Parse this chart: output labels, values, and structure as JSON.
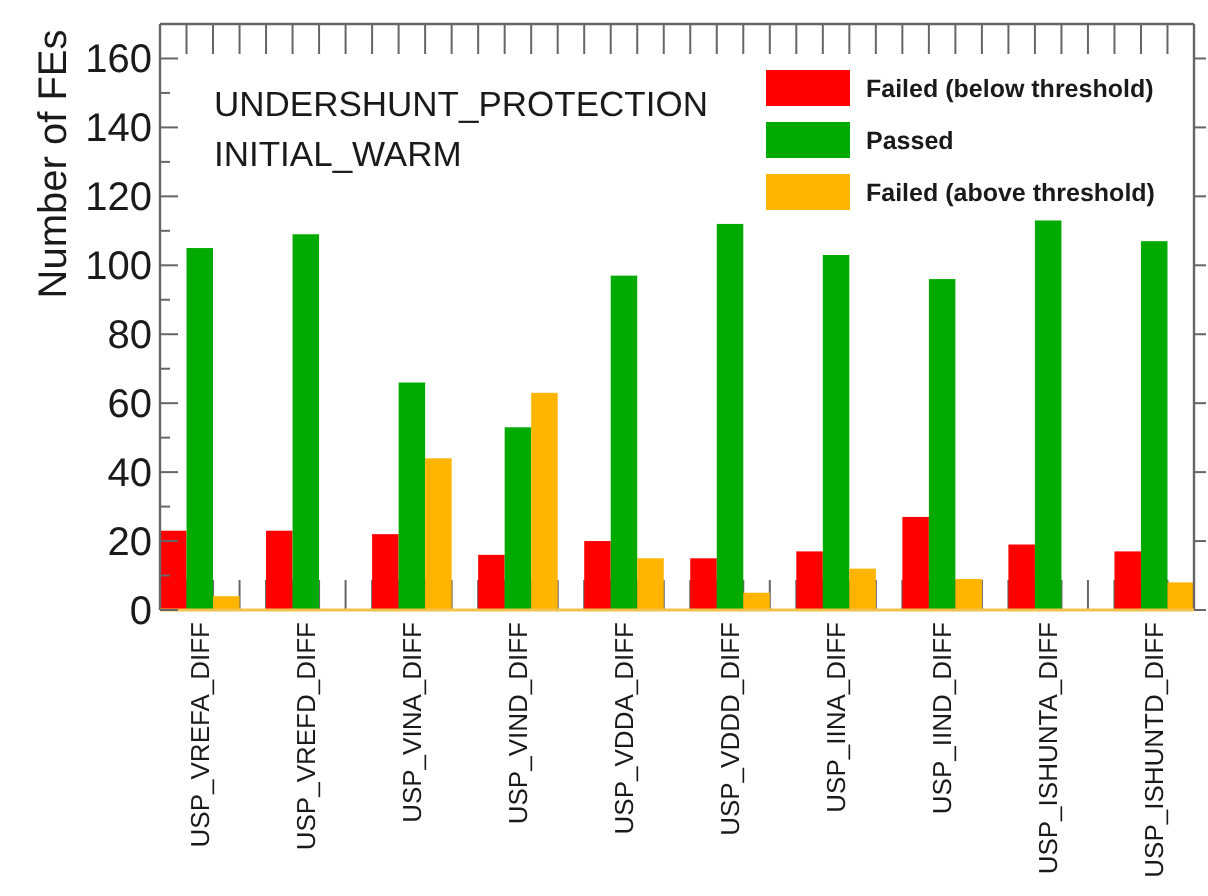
{
  "chart_data": {
    "type": "bar",
    "title": "UNDERSHUNT_PROTECTION",
    "subtitle": "INITIAL_WARM",
    "ylabel": "Number of FEs",
    "categories": [
      "USP_VREFA_DIFF",
      "USP_VREFD_DIFF",
      "USP_VINA_DIFF",
      "USP_VIND_DIFF",
      "USP_VDDA_DIFF",
      "USP_VDDD_DIFF",
      "USP_IINA_DIFF",
      "USP_IIND_DIFF",
      "USP_ISHUNTA_DIFF",
      "USP_ISHUNTD_DIFF"
    ],
    "series": [
      {
        "name": "Failed (below threshold)",
        "color": "#ff0000",
        "values": [
          23,
          23,
          22,
          16,
          20,
          15,
          17,
          27,
          19,
          17
        ]
      },
      {
        "name": "Passed",
        "color": "#00aa00",
        "values": [
          105,
          109,
          66,
          53,
          97,
          112,
          103,
          96,
          113,
          107
        ]
      },
      {
        "name": "Failed (above threshold)",
        "color": "#ffb400",
        "values": [
          4,
          0,
          44,
          63,
          15,
          5,
          12,
          9,
          0,
          8
        ]
      }
    ],
    "ylim": [
      0,
      170
    ],
    "yticks": [
      0,
      {
        "value": 10,
        "label": null
      },
      20,
      {
        "value": 30,
        "label": null
      },
      40,
      {
        "value": 50,
        "label": null
      },
      60,
      {
        "value": 70,
        "label": null
      },
      80,
      {
        "value": 90,
        "label": null
      },
      100,
      {
        "value": 110,
        "label": null
      },
      120,
      {
        "value": 130,
        "label": null
      },
      140,
      {
        "value": 150,
        "label": null
      },
      160
    ],
    "legend": "top right"
  }
}
